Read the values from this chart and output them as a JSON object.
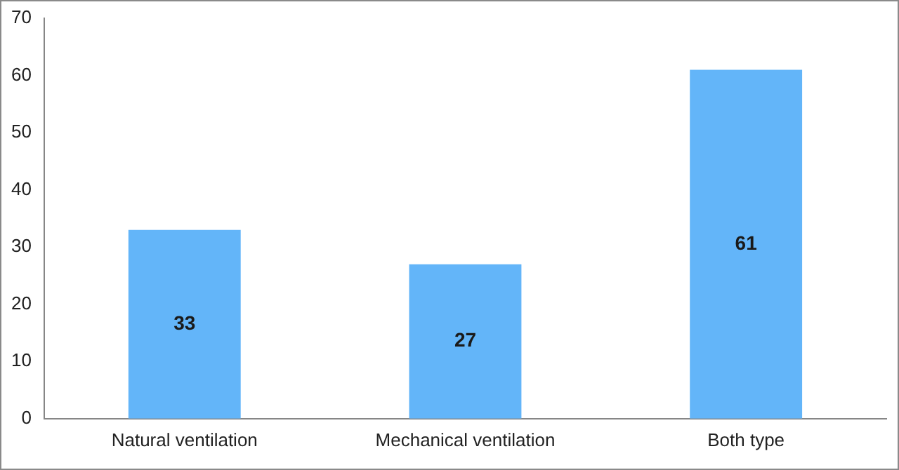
{
  "chart_data": {
    "type": "bar",
    "categories": [
      "Natural ventilation",
      "Mechanical ventilation",
      "Both type"
    ],
    "values": [
      33,
      27,
      61
    ],
    "color": "#63b5f9",
    "ylim": [
      0,
      70
    ],
    "yticks": [
      0,
      10,
      20,
      30,
      40,
      50,
      60,
      70
    ],
    "grid": false,
    "legend": false,
    "data_labels": true
  }
}
